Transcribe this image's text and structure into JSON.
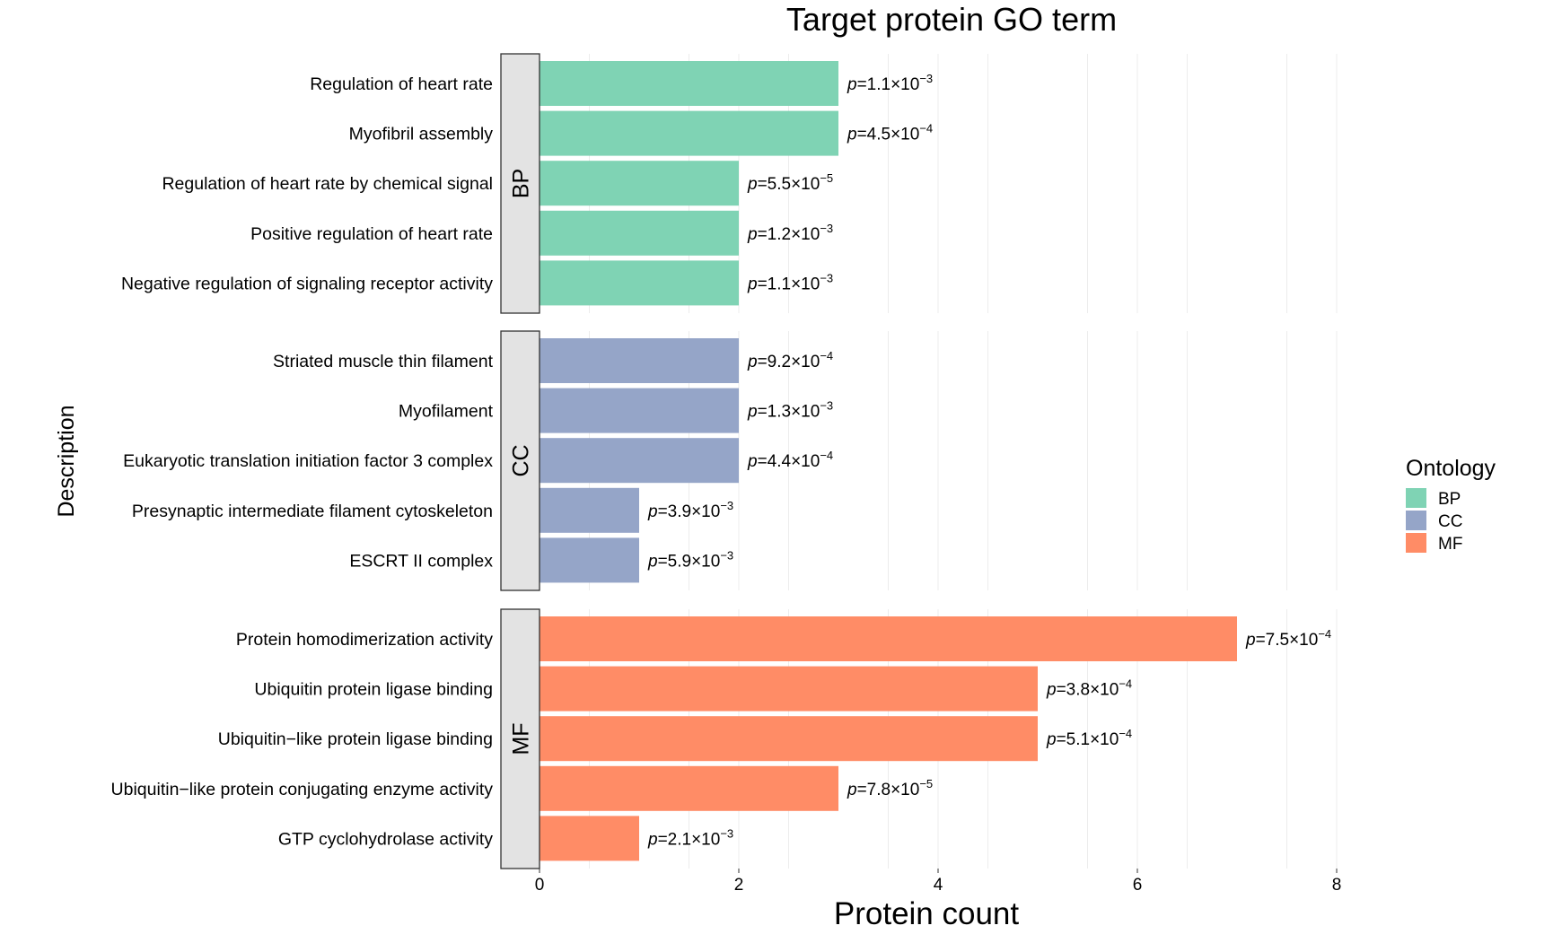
{
  "chart_data": {
    "type": "bar",
    "orientation": "horizontal",
    "title": "Target protein GO term",
    "xlabel": "Protein count",
    "ylabel": "Description",
    "xlim": [
      0,
      8
    ],
    "xticks": [
      0,
      2,
      4,
      6,
      8
    ],
    "grid": true,
    "legend": {
      "title": "Ontology",
      "position": "right",
      "entries": [
        {
          "label": "BP",
          "color": "#7fd3b4"
        },
        {
          "label": "CC",
          "color": "#95a5c8"
        },
        {
          "label": "MF",
          "color": "#ff8c66"
        }
      ]
    },
    "facets": [
      {
        "label": "BP",
        "color": "#7fd3b4",
        "bars": [
          {
            "name": "Regulation of heart rate",
            "value": 3,
            "p_mantissa": "1.1",
            "p_exp": "-3"
          },
          {
            "name": "Myofibril assembly",
            "value": 3,
            "p_mantissa": "4.5",
            "p_exp": "-4"
          },
          {
            "name": "Regulation of heart rate by chemical signal",
            "value": 2,
            "p_mantissa": "5.5",
            "p_exp": "-5"
          },
          {
            "name": "Positive regulation of heart rate",
            "value": 2,
            "p_mantissa": "1.2",
            "p_exp": "-3"
          },
          {
            "name": "Negative regulation of signaling receptor activity",
            "value": 2,
            "p_mantissa": "1.1",
            "p_exp": "-3"
          }
        ]
      },
      {
        "label": "CC",
        "color": "#95a5c8",
        "bars": [
          {
            "name": "Striated muscle thin filament",
            "value": 2,
            "p_mantissa": "9.2",
            "p_exp": "-4"
          },
          {
            "name": "Myofilament",
            "value": 2,
            "p_mantissa": "1.3",
            "p_exp": "-3"
          },
          {
            "name": "Eukaryotic translation initiation factor 3 complex",
            "value": 2,
            "p_mantissa": "4.4",
            "p_exp": "-4"
          },
          {
            "name": "Presynaptic intermediate filament cytoskeleton",
            "value": 1,
            "p_mantissa": "3.9",
            "p_exp": "-3"
          },
          {
            "name": "ESCRT II complex",
            "value": 1,
            "p_mantissa": "5.9",
            "p_exp": "-3"
          }
        ]
      },
      {
        "label": "MF",
        "color": "#ff8c66",
        "bars": [
          {
            "name": "Protein homodimerization activity",
            "value": 7,
            "p_mantissa": "7.5",
            "p_exp": "-4"
          },
          {
            "name": "Ubiquitin protein ligase binding",
            "value": 5,
            "p_mantissa": "3.8",
            "p_exp": "-4"
          },
          {
            "name": "Ubiquitin−like protein ligase binding",
            "value": 5,
            "p_mantissa": "5.1",
            "p_exp": "-4"
          },
          {
            "name": "Ubiquitin−like protein conjugating enzyme activity",
            "value": 3,
            "p_mantissa": "7.8",
            "p_exp": "-5"
          },
          {
            "name": "GTP cyclohydrolase activity",
            "value": 1,
            "p_mantissa": "2.1",
            "p_exp": "-3"
          }
        ]
      }
    ]
  }
}
